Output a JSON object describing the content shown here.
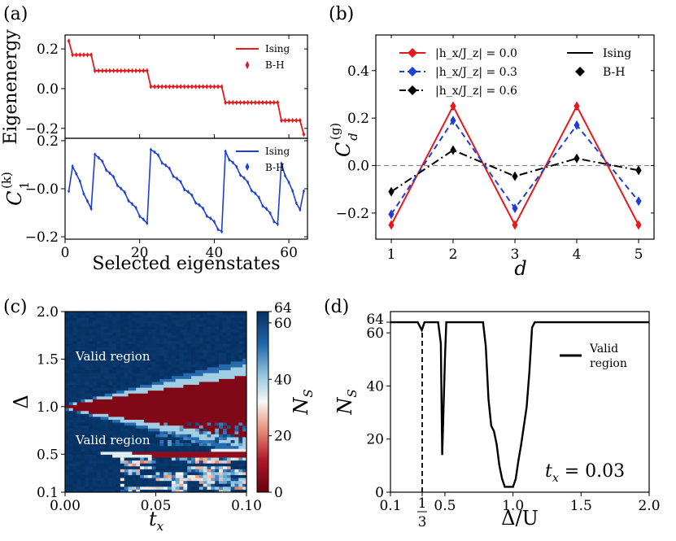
{
  "figure": {
    "panel_labels": [
      "(a)",
      "(b)",
      "(c)",
      "(d)"
    ]
  },
  "chart_data": [
    {
      "id": "a_top",
      "type": "line",
      "ylabel": "Eigenenergy",
      "xlim": [
        0,
        65
      ],
      "ylim": [
        -0.25,
        0.27
      ],
      "yticks": [
        -0.2,
        0.0,
        0.2
      ],
      "ytick_labels": [
        "−0.2",
        "0.0",
        "0.2"
      ],
      "legend": [
        "Ising",
        "B-H"
      ],
      "legend_position": "upper-right",
      "color": "#e41a1c",
      "plateaus": [
        {
          "from": 1,
          "to": 1,
          "value": 0.24
        },
        {
          "from": 2,
          "to": 7,
          "value": 0.17
        },
        {
          "from": 8,
          "to": 22,
          "value": 0.09
        },
        {
          "from": 23,
          "to": 42,
          "value": 0.01
        },
        {
          "from": 43,
          "to": 57,
          "value": -0.07
        },
        {
          "from": 58,
          "to": 63,
          "value": -0.16
        },
        {
          "from": 64,
          "to": 64,
          "value": -0.23
        }
      ]
    },
    {
      "id": "a_bottom",
      "type": "line",
      "ylabel": "C_1^{(k)}",
      "xlabel": "Selected eigenstates",
      "xlim": [
        0,
        65
      ],
      "ylim": [
        -0.21,
        0.21
      ],
      "xticks": [
        0,
        20,
        40,
        60
      ],
      "yticks": [
        -0.2,
        0.0,
        0.2
      ],
      "ytick_labels": [
        "−0.2",
        "−0.0",
        "0.2"
      ],
      "legend": [
        "Ising",
        "B-H"
      ],
      "legend_position": "upper-right",
      "color": "#1f3fd4",
      "segments": [
        {
          "from": 1,
          "to": 1,
          "start": -0.01,
          "end": -0.01
        },
        {
          "from": 2,
          "to": 7,
          "start": 0.1,
          "end": -0.09
        },
        {
          "from": 8,
          "to": 22,
          "start": 0.15,
          "end": -0.15
        },
        {
          "from": 23,
          "to": 42,
          "start": 0.17,
          "end": -0.18
        },
        {
          "from": 43,
          "to": 57,
          "start": 0.15,
          "end": -0.15
        },
        {
          "from": 58,
          "to": 63,
          "start": 0.1,
          "end": -0.09
        },
        {
          "from": 64,
          "to": 64,
          "start": -0.01,
          "end": -0.01
        }
      ]
    },
    {
      "id": "b",
      "type": "line",
      "xlabel": "d",
      "ylabel": "C_d^{(g)}",
      "x": [
        1,
        2,
        3,
        4,
        5
      ],
      "xlim": [
        0.75,
        5.25
      ],
      "ylim": [
        -0.31,
        0.55
      ],
      "yticks": [
        -0.2,
        0.0,
        0.2,
        0.4
      ],
      "ytick_labels": [
        "−0.2",
        "0.0",
        "0.2",
        "0.4"
      ],
      "series": [
        {
          "name": "|h_x/J_z| = 0.0",
          "color": "#e41a1c",
          "style": "solid",
          "values": [
            -0.25,
            0.25,
            -0.25,
            0.25,
            -0.25
          ]
        },
        {
          "name": "|h_x/J_z| = 0.3",
          "color": "#1f3fd4",
          "style": "dashed",
          "values": [
            -0.205,
            0.19,
            -0.18,
            0.17,
            -0.15
          ]
        },
        {
          "name": "|h_x/J_z| = 0.6",
          "color": "#000000",
          "style": "dashdot",
          "values": [
            -0.11,
            0.065,
            -0.045,
            0.03,
            -0.02
          ]
        }
      ],
      "legend_extra": [
        "Ising",
        "B-H"
      ],
      "reference_line": 0.0
    },
    {
      "id": "c",
      "type": "heatmap",
      "xlabel": "t_x",
      "ylabel": "Δ",
      "colorbar_label": "N_S",
      "xlim": [
        0.0,
        0.1
      ],
      "ylim": [
        0.1,
        2.0
      ],
      "xticks": [
        0.0,
        0.05,
        0.1
      ],
      "xtick_labels": [
        "0.00",
        "0.05",
        "0.10"
      ],
      "yticks": [
        0.1,
        0.5,
        1.0,
        1.5,
        2.0
      ],
      "ytick_labels": [
        "0.1",
        "0.5",
        "1.0",
        "1.5",
        "2.0"
      ],
      "colorbar_ticks": [
        0,
        20,
        40,
        60,
        64
      ],
      "colorbar_range": [
        0,
        64
      ],
      "annotations": [
        "Valid region",
        "Valid region"
      ]
    },
    {
      "id": "d",
      "type": "line",
      "xlabel": "Δ/U",
      "ylabel": "N_S",
      "xlim": [
        0.1,
        2.0
      ],
      "ylim": [
        0,
        68
      ],
      "xticks": [
        0.1,
        0.333,
        0.5,
        1.0,
        1.5,
        2.0
      ],
      "xtick_labels": [
        "0.1",
        "1/3",
        "0.5",
        "1.0",
        "1.5",
        "2.0"
      ],
      "yticks": [
        0,
        20,
        40,
        60,
        64
      ],
      "legend": [
        "Valid",
        "region"
      ],
      "annotation": "t_x = 0.03",
      "vline": 0.333,
      "x": [
        0.1,
        0.3,
        0.33,
        0.35,
        0.45,
        0.47,
        0.48,
        0.5,
        0.51,
        0.53,
        0.78,
        0.8,
        0.82,
        0.84,
        0.86,
        0.88,
        0.9,
        0.92,
        0.94,
        0.96,
        0.98,
        1.0,
        1.02,
        1.04,
        1.06,
        1.08,
        1.1,
        1.12,
        1.14,
        1.16,
        1.18,
        2.0
      ],
      "values": [
        64,
        64,
        61,
        64,
        64,
        56,
        14,
        50,
        64,
        64,
        64,
        55,
        35,
        25,
        23,
        18,
        10,
        5,
        2,
        2,
        2,
        2,
        5,
        12,
        18,
        25,
        32,
        45,
        62,
        64,
        64,
        64
      ]
    }
  ]
}
